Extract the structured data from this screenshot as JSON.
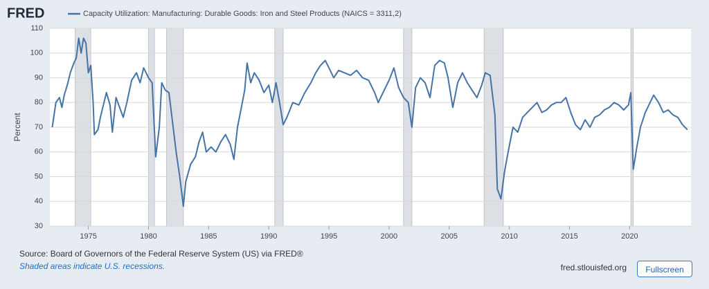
{
  "chart_data": {
    "type": "line",
    "logo": "FRED",
    "y_label": "Percent",
    "x": [
      1972.0,
      1972.3,
      1972.6,
      1972.8,
      1973.0,
      1973.3,
      1973.5,
      1973.8,
      1974.0,
      1974.2,
      1974.4,
      1974.6,
      1974.8,
      1975.0,
      1975.2,
      1975.4,
      1975.5,
      1975.8,
      1976.0,
      1976.3,
      1976.5,
      1976.8,
      1977.0,
      1977.3,
      1977.6,
      1977.9,
      1978.2,
      1978.6,
      1979.0,
      1979.3,
      1979.6,
      1980.0,
      1980.3,
      1980.6,
      1980.9,
      1981.1,
      1981.4,
      1981.7,
      1982.0,
      1982.3,
      1982.6,
      1982.9,
      1983.1,
      1983.5,
      1983.9,
      1984.2,
      1984.5,
      1984.8,
      1985.2,
      1985.6,
      1986.0,
      1986.4,
      1986.8,
      1987.1,
      1987.4,
      1987.8,
      1988.0,
      1988.2,
      1988.5,
      1988.8,
      1989.2,
      1989.6,
      1990.0,
      1990.3,
      1990.6,
      1990.9,
      1991.2,
      1991.5,
      1992.0,
      1992.5,
      1993.0,
      1993.5,
      1993.9,
      1994.3,
      1994.7,
      1995.0,
      1995.4,
      1995.8,
      1996.3,
      1996.8,
      1997.3,
      1997.8,
      1998.3,
      1998.8,
      1999.1,
      1999.5,
      2000.0,
      2000.4,
      2000.8,
      2001.2,
      2001.6,
      2001.9,
      2002.2,
      2002.6,
      2003.0,
      2003.4,
      2003.8,
      2004.2,
      2004.6,
      2004.9,
      2005.3,
      2005.7,
      2006.1,
      2006.5,
      2006.9,
      2007.3,
      2007.7,
      2008.0,
      2008.4,
      2008.8,
      2009.0,
      2009.3,
      2009.6,
      2009.9,
      2010.3,
      2010.7,
      2011.1,
      2011.5,
      2011.9,
      2012.3,
      2012.7,
      2013.1,
      2013.5,
      2013.9,
      2014.3,
      2014.7,
      2015.1,
      2015.5,
      2015.9,
      2016.3,
      2016.7,
      2017.1,
      2017.5,
      2017.9,
      2018.3,
      2018.7,
      2019.1,
      2019.5,
      2019.9,
      2020.1,
      2020.3,
      2020.6,
      2020.9,
      2021.3,
      2021.7,
      2022.0,
      2022.4,
      2022.8,
      2023.2,
      2023.6,
      2024.0,
      2024.4,
      2024.8
    ],
    "series": [
      {
        "name": "Capacity Utilization: Manufacturing: Durable Goods: Iron and Steel Products (NAICS = 3311,2)",
        "color": "#4572a7",
        "values": [
          70,
          80,
          82,
          78,
          83,
          88,
          92,
          96,
          98,
          106,
          100,
          106,
          104,
          92,
          95,
          80,
          67,
          69,
          74,
          80,
          84,
          79,
          68,
          82,
          78,
          74,
          80,
          89,
          92,
          88,
          94,
          90,
          88,
          58,
          70,
          88,
          85,
          84,
          72,
          60,
          50,
          38,
          48,
          55,
          58,
          64,
          68,
          60,
          62,
          60,
          64,
          67,
          63,
          57,
          70,
          80,
          85,
          96,
          88,
          92,
          89,
          84,
          87,
          80,
          88,
          80,
          71,
          74,
          80,
          79,
          84,
          88,
          92,
          95,
          97,
          94,
          90,
          93,
          92,
          91,
          93,
          90,
          89,
          84,
          80,
          84,
          89,
          94,
          86,
          82,
          80,
          70,
          86,
          90,
          88,
          82,
          95,
          97,
          96,
          90,
          78,
          88,
          92,
          88,
          85,
          82,
          87,
          92,
          91,
          75,
          45,
          41,
          52,
          60,
          70,
          68,
          74,
          76,
          78,
          80,
          76,
          77,
          79,
          80,
          80,
          82,
          76,
          71,
          69,
          73,
          70,
          74,
          75,
          77,
          78,
          80,
          79,
          77,
          79,
          84,
          53,
          62,
          70,
          76,
          80,
          83,
          80,
          76,
          77,
          75,
          74,
          71,
          69
        ]
      }
    ],
    "xlim": [
      1971.8,
      2025.1
    ],
    "ylim": [
      30,
      110
    ],
    "xticks": [
      1975,
      1980,
      1985,
      1990,
      1995,
      2000,
      2005,
      2010,
      2015,
      2020
    ],
    "yticks": [
      30,
      40,
      50,
      60,
      70,
      80,
      90,
      100,
      110
    ],
    "grid": true,
    "recessions": [
      [
        1973.9,
        1975.2
      ],
      [
        1980.0,
        1980.5
      ],
      [
        1981.5,
        1982.9
      ],
      [
        1990.5,
        1991.2
      ],
      [
        2001.2,
        2001.9
      ],
      [
        2007.9,
        2009.5
      ],
      [
        2020.1,
        2020.3
      ]
    ]
  },
  "source": "Source: Board of Governors of the Federal Reserve System (US) via FRED®",
  "note": "Shaded areas indicate U.S. recessions.",
  "site": "fred.stlouisfed.org",
  "button": "Fullscreen"
}
